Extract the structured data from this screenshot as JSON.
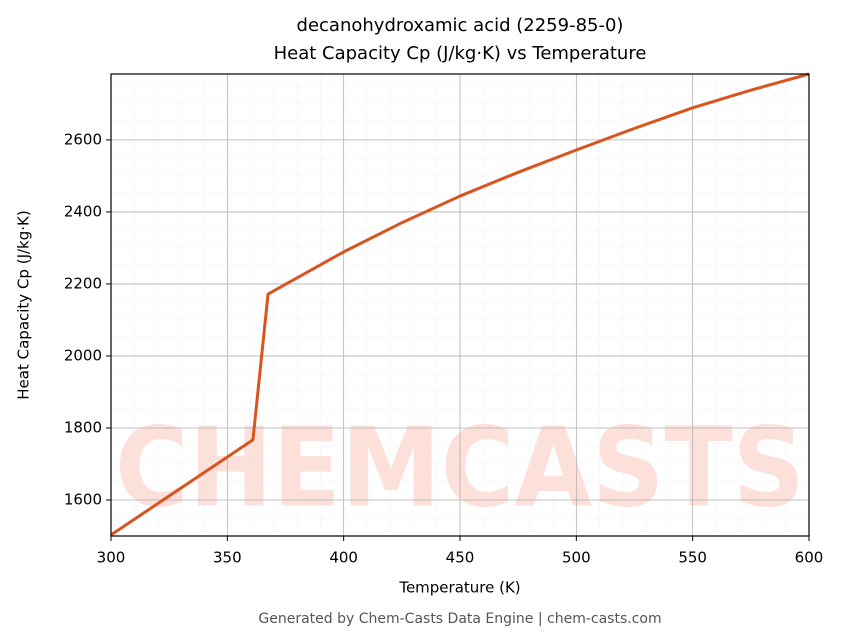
{
  "chart_data": {
    "type": "line",
    "title": "decanohydroxamic acid (2259-85-0)",
    "subtitle": "Heat Capacity Cp (J/kg·K) vs Temperature",
    "x_label": "Temperature (K)",
    "y_label": "Heat Capacity Cp (J/kg·K)",
    "footer": "Generated by Chem-Casts Data Engine | chem-casts.com",
    "watermark": "CHEMCASTS",
    "x": [
      300,
      361,
      367.5,
      400,
      425,
      450,
      475,
      500,
      525,
      550,
      575,
      600
    ],
    "series": [
      {
        "name": "Cp",
        "color": "#d9541e",
        "values": [
          1503,
          1767,
          2172,
          2289,
          2370,
          2444,
          2510,
          2572,
          2632,
          2689,
          2738,
          2783
        ]
      }
    ],
    "xlim": [
      300,
      600
    ],
    "ylim": [
      1500,
      2783
    ],
    "xticks": [
      300,
      350,
      400,
      450,
      500,
      550,
      600
    ],
    "yticks": [
      1600,
      1800,
      2000,
      2200,
      2400,
      2600
    ],
    "grid": true,
    "minor_grid": true
  }
}
